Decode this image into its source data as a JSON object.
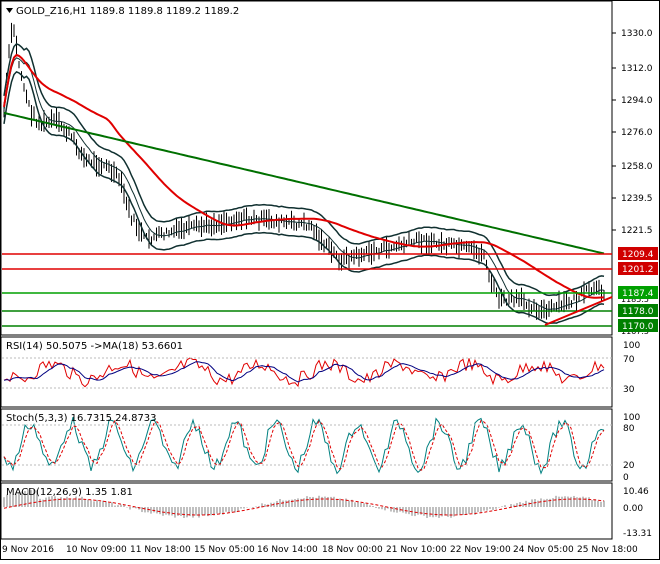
{
  "main": {
    "title": "GOLD_Z16,H1  1189.8 1189.8 1189.2 1189.2",
    "price_ticks": [
      "1330.0",
      "1312.0",
      "1294.0",
      "1276.0",
      "1258.0",
      "1239.5",
      "1221.5"
    ],
    "price_ticks_partial": [
      "1185.5",
      "1167.5"
    ],
    "levels": [
      {
        "label": "1209.4",
        "color": "#d00000",
        "text_color": "#ffffff"
      },
      {
        "label": "1201.2",
        "color": "#d00000",
        "text_color": "#ffffff"
      },
      {
        "label": "1187.4",
        "color": "#00a000",
        "text_color": "#ffffff"
      },
      {
        "label": "1178.0",
        "color": "#008000",
        "text_color": "#ffffff"
      },
      {
        "label": "1170.0",
        "color": "#008000",
        "text_color": "#ffffff"
      }
    ],
    "ma_colors": {
      "red": "#e00000",
      "green": "#007000",
      "bands": "#103030"
    }
  },
  "rsi": {
    "title": "RSI(14) 50.5075  ->MA(18) 53.6601",
    "ticks": [
      "100",
      "70",
      "50",
      "30",
      "0"
    ]
  },
  "stoch": {
    "title": "Stoch(5,3,3) 16.7315 24.8733",
    "ticks": [
      "100",
      "80",
      "20",
      "0"
    ]
  },
  "macd": {
    "title": "MACD(12,26,9) 1.35 1.81",
    "ticks": [
      "10.46",
      "0.00",
      "-13.31"
    ]
  },
  "time_axis": [
    "9 Nov 2016",
    "10 Nov 09:00",
    "11 Nov 18:00",
    "15 Nov 05:00",
    "16 Nov 14:00",
    "18 Nov 00:00",
    "21 Nov 10:00",
    "22 Nov 19:00",
    "24 Nov 05:00",
    "25 Nov 18:00"
  ]
}
